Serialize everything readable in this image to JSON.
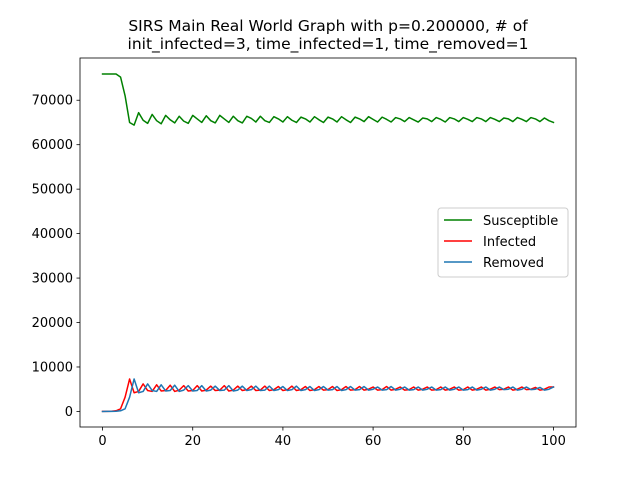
{
  "chart_data": {
    "type": "line",
    "title_lines": [
      "SIRS Main Real World Graph with p=0.200000, # of",
      "init_infected=3, time_infected=1, time_removed=1"
    ],
    "xlabel": "",
    "ylabel": "",
    "xlim": [
      -5,
      105
    ],
    "ylim": [
      -3500,
      79500
    ],
    "x_ticks": [
      0,
      20,
      40,
      60,
      80,
      100
    ],
    "y_ticks": [
      0,
      10000,
      20000,
      30000,
      40000,
      50000,
      60000,
      70000
    ],
    "grid": false,
    "legend_position": "center-right",
    "x": [
      0,
      1,
      2,
      3,
      4,
      5,
      6,
      7,
      8,
      9,
      10,
      11,
      12,
      13,
      14,
      15,
      16,
      17,
      18,
      19,
      20,
      21,
      22,
      23,
      24,
      25,
      26,
      27,
      28,
      29,
      30,
      31,
      32,
      33,
      34,
      35,
      36,
      37,
      38,
      39,
      40,
      41,
      42,
      43,
      44,
      45,
      46,
      47,
      48,
      49,
      50,
      51,
      52,
      53,
      54,
      55,
      56,
      57,
      58,
      59,
      60,
      61,
      62,
      63,
      64,
      65,
      66,
      67,
      68,
      69,
      70,
      71,
      72,
      73,
      74,
      75,
      76,
      77,
      78,
      79,
      80,
      81,
      82,
      83,
      84,
      85,
      86,
      87,
      88,
      89,
      90,
      91,
      92,
      93,
      94,
      95,
      96,
      97,
      98,
      99,
      100
    ],
    "series": [
      {
        "name": "Susceptible",
        "color": "#008000",
        "values": [
          75900,
          75900,
          75900,
          75900,
          75200,
          71000,
          65000,
          64400,
          67200,
          65500,
          64800,
          66800,
          65400,
          64700,
          66600,
          65600,
          64900,
          66400,
          65300,
          64800,
          66600,
          65800,
          65000,
          66500,
          65400,
          64900,
          66600,
          65800,
          65000,
          66400,
          65400,
          64900,
          66400,
          65900,
          65100,
          66400,
          65400,
          65000,
          66300,
          65800,
          65100,
          66300,
          65500,
          65000,
          66200,
          65800,
          65100,
          66300,
          65600,
          65000,
          66200,
          65800,
          65100,
          66300,
          65600,
          65000,
          66200,
          65800,
          65200,
          66300,
          65700,
          65100,
          66200,
          65700,
          65100,
          66100,
          65800,
          65200,
          66100,
          65600,
          65100,
          66000,
          65800,
          65200,
          66100,
          65700,
          65100,
          66100,
          65800,
          65200,
          66100,
          65700,
          65200,
          66100,
          65800,
          65200,
          66100,
          65700,
          65200,
          66000,
          65800,
          65200,
          66100,
          65700,
          65200,
          66100,
          65800,
          65200,
          66000,
          65400,
          65000
        ]
      },
      {
        "name": "Infected",
        "color": "#ff0000",
        "values": [
          3,
          10,
          40,
          150,
          600,
          3200,
          7300,
          4200,
          4500,
          6200,
          4700,
          4500,
          6000,
          4600,
          4700,
          5900,
          4500,
          4800,
          5800,
          4600,
          4700,
          5800,
          4600,
          4800,
          5700,
          4700,
          4800,
          5800,
          4600,
          4800,
          5700,
          4700,
          4900,
          5700,
          4700,
          4800,
          5700,
          4700,
          4900,
          5600,
          4700,
          4900,
          5700,
          4700,
          4900,
          5600,
          4700,
          4900,
          5600,
          4800,
          4900,
          5600,
          4700,
          4900,
          5600,
          4800,
          4900,
          5600,
          4800,
          5000,
          5500,
          4800,
          4900,
          5600,
          4800,
          5000,
          5500,
          4800,
          4900,
          5500,
          4800,
          5000,
          5500,
          4800,
          4900,
          5500,
          4800,
          5000,
          5500,
          4800,
          4900,
          5500,
          4800,
          5000,
          5500,
          4800,
          5000,
          5500,
          4900,
          5000,
          5500,
          4800,
          5000,
          5500,
          4900,
          5000,
          5400,
          4800,
          5000,
          5500,
          5500
        ]
      },
      {
        "name": "Removed",
        "color": "#1f77b4",
        "values": [
          0,
          3,
          10,
          40,
          150,
          600,
          3200,
          7300,
          4200,
          4500,
          6200,
          4700,
          4500,
          6000,
          4600,
          4700,
          5900,
          4500,
          4800,
          5800,
          4600,
          4700,
          5800,
          4600,
          4800,
          5700,
          4700,
          4800,
          5800,
          4600,
          4800,
          5700,
          4700,
          4900,
          5700,
          4700,
          4800,
          5700,
          4700,
          4900,
          5600,
          4700,
          4900,
          5700,
          4700,
          4900,
          5600,
          4700,
          4900,
          5600,
          4800,
          4900,
          5600,
          4700,
          4900,
          5600,
          4800,
          4900,
          5600,
          4800,
          5000,
          5500,
          4800,
          4900,
          5600,
          4800,
          5000,
          5500,
          4800,
          4900,
          5500,
          4800,
          5000,
          5500,
          4800,
          4900,
          5500,
          4800,
          5000,
          5500,
          4800,
          4900,
          5500,
          4800,
          5000,
          5500,
          4800,
          5000,
          5500,
          4900,
          5000,
          5500,
          4800,
          5000,
          5500,
          4900,
          5000,
          5400,
          4800,
          5000,
          5500
        ]
      }
    ]
  }
}
